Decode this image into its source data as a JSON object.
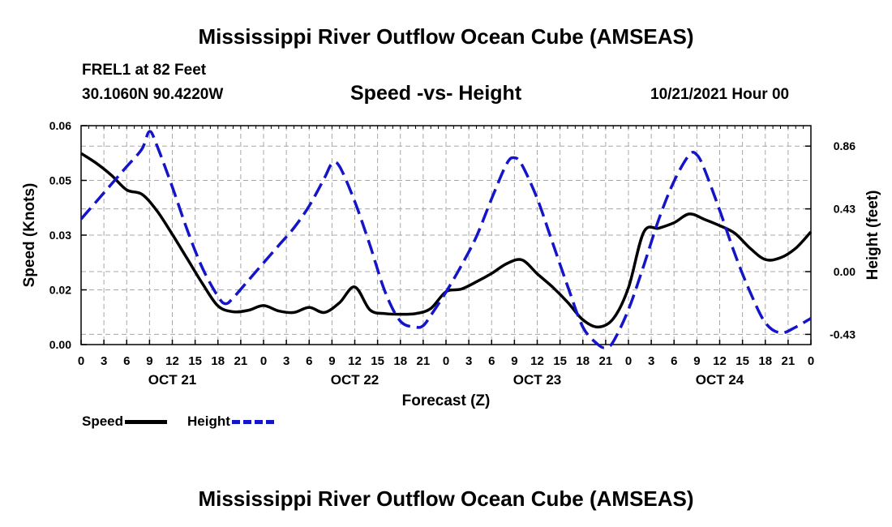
{
  "header": {
    "title": "Mississippi River Outflow Ocean Cube (AMSEAS)",
    "station": "FREL1 at 82 Feet",
    "coords": "30.1060N  90.4220W",
    "subtitle": "Speed -vs- Height",
    "datetime": "10/21/2021 Hour 00"
  },
  "footer": {
    "title": "Mississippi River Outflow Ocean Cube (AMSEAS)"
  },
  "legend": {
    "speed_label": "Speed",
    "height_label": "Height",
    "speed_color": "#000000",
    "height_color": "#1414c8"
  },
  "chart_data": {
    "type": "line",
    "title": "Speed -vs- Height",
    "xlabel": "Forecast (Z)",
    "ylabel": "Speed (Knots)",
    "y2label": "Height (feet)",
    "xlim": [
      0,
      96
    ],
    "ylim": [
      0,
      0.06
    ],
    "y2lim": [
      -0.5,
      1.0
    ],
    "xtick_values": [
      0,
      3,
      6,
      9,
      12,
      15,
      18,
      21,
      24,
      27,
      30,
      33,
      36,
      39,
      42,
      45,
      48,
      51,
      54,
      57,
      60,
      63,
      66,
      69,
      72,
      75,
      78,
      81,
      84,
      87,
      90,
      93,
      96
    ],
    "xtick_labels": [
      "0",
      "3",
      "6",
      "9",
      "12",
      "15",
      "18",
      "21",
      "0",
      "3",
      "6",
      "9",
      "12",
      "15",
      "18",
      "21",
      "0",
      "3",
      "6",
      "9",
      "12",
      "15",
      "18",
      "21",
      "0",
      "3",
      "6",
      "9",
      "12",
      "15",
      "18",
      "21",
      "0"
    ],
    "day_labels": [
      {
        "x": 12,
        "label": "OCT 21"
      },
      {
        "x": 36,
        "label": "OCT 22"
      },
      {
        "x": 60,
        "label": "OCT 23"
      },
      {
        "x": 84,
        "label": "OCT 24"
      }
    ],
    "ytick_values": [
      0,
      0.015,
      0.03,
      0.045,
      0.06
    ],
    "ytick_labels": [
      "0.00",
      "0.02",
      "0.03",
      "0.05",
      "0.06"
    ],
    "y2tick_values": [
      -0.43,
      0,
      0.43,
      0.86
    ],
    "y2tick_labels": [
      "-0.43",
      "0.00",
      "0.43",
      "0.86"
    ],
    "series": [
      {
        "name": "Speed",
        "axis": "left",
        "style": "solid",
        "color": "#000000",
        "x": [
          0,
          2,
          4,
          6,
          8,
          10,
          12,
          14,
          16,
          18,
          20,
          22,
          24,
          26,
          28,
          30,
          32,
          34,
          36,
          38,
          40,
          42,
          44,
          46,
          48,
          50,
          52,
          54,
          56,
          58,
          60,
          62,
          64,
          66,
          68,
          70,
          72,
          74,
          76,
          78,
          80,
          82,
          84,
          86,
          88,
          90,
          92,
          94,
          96
        ],
        "values": [
          0.0524,
          0.0497,
          0.0464,
          0.0424,
          0.0412,
          0.0366,
          0.0302,
          0.0234,
          0.0166,
          0.0106,
          0.009,
          0.0094,
          0.0107,
          0.0092,
          0.0088,
          0.0102,
          0.0088,
          0.0115,
          0.0158,
          0.0095,
          0.0085,
          0.0083,
          0.0085,
          0.0099,
          0.0145,
          0.0152,
          0.0172,
          0.0195,
          0.0222,
          0.0232,
          0.0194,
          0.0158,
          0.0116,
          0.0068,
          0.0048,
          0.0071,
          0.0156,
          0.0308,
          0.0319,
          0.0334,
          0.0358,
          0.0343,
          0.0326,
          0.0305,
          0.0264,
          0.0233,
          0.0238,
          0.0264,
          0.0309
        ]
      },
      {
        "name": "Height",
        "axis": "right",
        "style": "dashed",
        "color": "#1414c8",
        "x": [
          0,
          2,
          4,
          6,
          8,
          9,
          10,
          12,
          14,
          16,
          18,
          19,
          20,
          22,
          24,
          26,
          28,
          30,
          32,
          33,
          34,
          36,
          38,
          40,
          42,
          44,
          45,
          46,
          48,
          50,
          52,
          54,
          56,
          57,
          58,
          60,
          62,
          64,
          66,
          68,
          69,
          70,
          72,
          74,
          76,
          78,
          80,
          81,
          82,
          84,
          86,
          88,
          90,
          92,
          94,
          96
        ],
        "values": [
          0.36,
          0.48,
          0.6,
          0.72,
          0.84,
          0.96,
          0.86,
          0.58,
          0.28,
          0.02,
          -0.17,
          -0.22,
          -0.18,
          -0.06,
          0.06,
          0.18,
          0.3,
          0.45,
          0.64,
          0.74,
          0.72,
          0.48,
          0.18,
          -0.14,
          -0.34,
          -0.38,
          -0.37,
          -0.3,
          -0.14,
          0.04,
          0.24,
          0.5,
          0.74,
          0.78,
          0.73,
          0.5,
          0.2,
          -0.1,
          -0.38,
          -0.5,
          -0.52,
          -0.48,
          -0.26,
          0.04,
          0.36,
          0.62,
          0.8,
          0.8,
          0.7,
          0.42,
          0.12,
          -0.14,
          -0.35,
          -0.42,
          -0.38,
          -0.32
        ]
      }
    ],
    "grid": true
  }
}
